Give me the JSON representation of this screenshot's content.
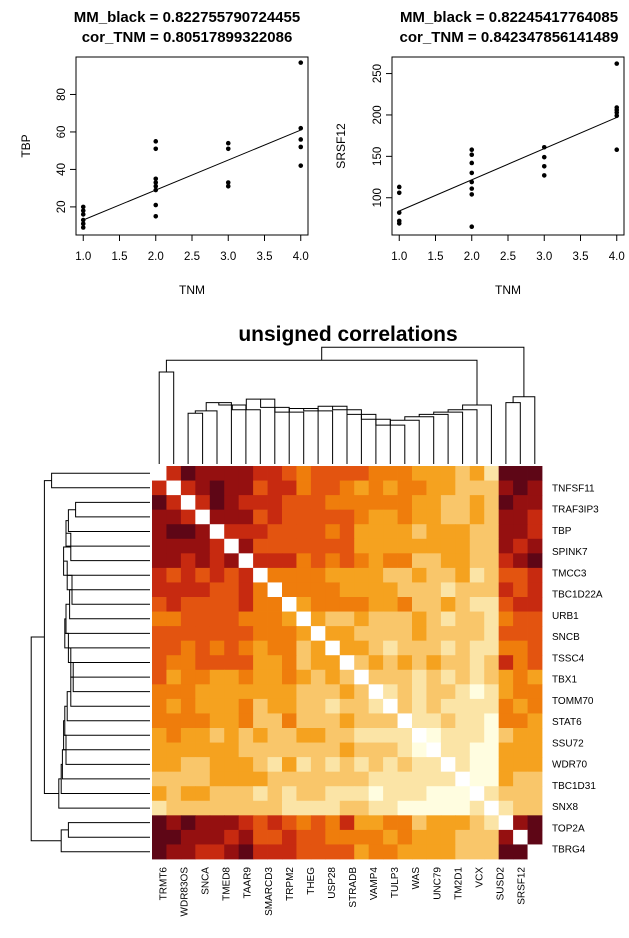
{
  "chart_data": [
    {
      "type": "scatter",
      "title_lines": [
        {
          "label": "MM_black = ",
          "value": "0.822755790724455"
        },
        {
          "label": "cor_TNM = ",
          "value": "0.80517899322086"
        }
      ],
      "xlabel": "TNM",
      "ylabel": "TBP",
      "xlim": [
        0.9,
        4.1
      ],
      "ylim": [
        5,
        100
      ],
      "x_ticks": [
        "1.0",
        "1.5",
        "2.0",
        "2.5",
        "3.0",
        "3.5",
        "4.0"
      ],
      "y_ticks": [
        "20",
        "40",
        "60",
        "80"
      ],
      "points": [
        {
          "x": 1,
          "y": 20
        },
        {
          "x": 1,
          "y": 18
        },
        {
          "x": 1,
          "y": 16
        },
        {
          "x": 1,
          "y": 13
        },
        {
          "x": 1,
          "y": 11
        },
        {
          "x": 1,
          "y": 9
        },
        {
          "x": 2,
          "y": 55
        },
        {
          "x": 2,
          "y": 51
        },
        {
          "x": 2,
          "y": 35
        },
        {
          "x": 2,
          "y": 33
        },
        {
          "x": 2,
          "y": 31
        },
        {
          "x": 2,
          "y": 29
        },
        {
          "x": 2,
          "y": 21
        },
        {
          "x": 2,
          "y": 15
        },
        {
          "x": 3,
          "y": 54
        },
        {
          "x": 3,
          "y": 51
        },
        {
          "x": 3,
          "y": 33
        },
        {
          "x": 3,
          "y": 31
        },
        {
          "x": 4,
          "y": 97
        },
        {
          "x": 4,
          "y": 62
        },
        {
          "x": 4,
          "y": 56
        },
        {
          "x": 4,
          "y": 52
        },
        {
          "x": 4,
          "y": 42
        }
      ],
      "fit_line": {
        "x": [
          1,
          4
        ],
        "y": [
          13,
          61
        ]
      }
    },
    {
      "type": "scatter",
      "title_lines": [
        {
          "label": "MM_black = ",
          "value": "0.82245417764085"
        },
        {
          "label": "cor_TNM = ",
          "value": "0.842347856141489"
        }
      ],
      "xlabel": "TNM",
      "ylabel": "SRSF12",
      "xlim": [
        0.9,
        4.1
      ],
      "ylim": [
        55,
        270
      ],
      "x_ticks": [
        "1.0",
        "1.5",
        "2.0",
        "2.5",
        "3.0",
        "3.5",
        "4.0"
      ],
      "y_ticks": [
        "100",
        "150",
        "200",
        "250"
      ],
      "points": [
        {
          "x": 1,
          "y": 113
        },
        {
          "x": 1,
          "y": 106
        },
        {
          "x": 1,
          "y": 82
        },
        {
          "x": 1,
          "y": 72
        },
        {
          "x": 1,
          "y": 69
        },
        {
          "x": 2,
          "y": 158
        },
        {
          "x": 2,
          "y": 152
        },
        {
          "x": 2,
          "y": 142
        },
        {
          "x": 2,
          "y": 130
        },
        {
          "x": 2,
          "y": 119
        },
        {
          "x": 2,
          "y": 111
        },
        {
          "x": 2,
          "y": 104
        },
        {
          "x": 2,
          "y": 65
        },
        {
          "x": 3,
          "y": 161
        },
        {
          "x": 3,
          "y": 149
        },
        {
          "x": 3,
          "y": 138
        },
        {
          "x": 3,
          "y": 127
        },
        {
          "x": 4,
          "y": 262
        },
        {
          "x": 4,
          "y": 209
        },
        {
          "x": 4,
          "y": 206
        },
        {
          "x": 4,
          "y": 203
        },
        {
          "x": 4,
          "y": 199
        },
        {
          "x": 4,
          "y": 158
        }
      ],
      "fit_line": {
        "x": [
          1,
          4
        ],
        "y": [
          84,
          197
        ]
      }
    },
    {
      "type": "heatmap",
      "title": "unsigned correlations",
      "row_labels": [
        "TNFSF11",
        "TRAF3IP3",
        "TBP",
        "SPINK7",
        "TMCC3",
        "TBC1D22A",
        "URB1",
        "SNCB",
        "TSSC4",
        "TBX1",
        "TOMM70",
        "STAT6",
        "SSU72",
        "WDR70",
        "TBC1D31",
        "SNX8",
        "TOP2A",
        "TBRG4"
      ],
      "column_labels": [
        "TRMT6",
        "WDR83OS",
        "SNCA",
        "TMED8",
        "TAAR9",
        "SMARCD3",
        "TRPM2",
        "THEG",
        "USP28",
        "STRADB",
        "VAMP4",
        "TULP3",
        "WAS",
        "UNC79",
        "TM2D1",
        "VCX",
        "SUSD2",
        "SRSF12"
      ],
      "n_cells": 27,
      "color_scale": [
        "#fffde0",
        "#fbe4a6",
        "#f9c66a",
        "#f5a21f",
        "#ef7d0c",
        "#e35410",
        "#c72a10",
        "#951010",
        "#5e0616"
      ],
      "row_dendrogram": "left",
      "column_dendrogram": "top"
    }
  ]
}
